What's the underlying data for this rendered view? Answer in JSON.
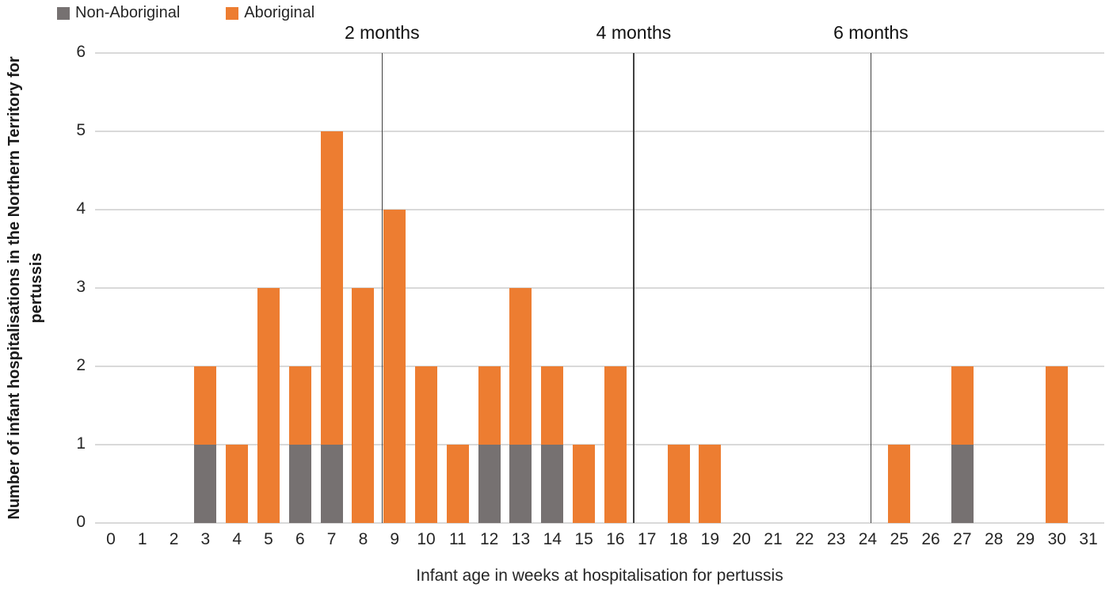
{
  "colors": {
    "aboriginal_orange": "#ED7D31",
    "non_aboriginal_gray": "#767171",
    "gridline": "#d9d9d9",
    "month_line": "#404040",
    "text": "#262626"
  },
  "legend": {
    "items": [
      {
        "label": "Non-Aboriginal",
        "color": "#767171"
      },
      {
        "label": "Aboriginal",
        "color": "#ED7D31"
      }
    ]
  },
  "chart_data": {
    "type": "bar",
    "stacked": true,
    "title": "",
    "xlabel": "Infant age in weeks at hospitalisation for pertussis",
    "ylabel": "Number of infant hospitalisations in the Northern Territory for pertussis",
    "categories": [
      0,
      1,
      2,
      3,
      4,
      5,
      6,
      7,
      8,
      9,
      10,
      11,
      12,
      13,
      14,
      15,
      16,
      17,
      18,
      19,
      20,
      21,
      22,
      23,
      24,
      25,
      26,
      27,
      28,
      29,
      30,
      31
    ],
    "series": [
      {
        "name": "Non-Aboriginal",
        "color": "#767171",
        "values": [
          0,
          0,
          0,
          1,
          0,
          0,
          1,
          1,
          0,
          0,
          0,
          0,
          1,
          1,
          1,
          0,
          0,
          0,
          0,
          0,
          0,
          0,
          0,
          0,
          0,
          0,
          0,
          1,
          0,
          0,
          0,
          0
        ]
      },
      {
        "name": "Aboriginal",
        "color": "#ED7D31",
        "values": [
          0,
          0,
          0,
          1,
          1,
          3,
          1,
          4,
          3,
          4,
          2,
          1,
          1,
          2,
          1,
          1,
          2,
          0,
          1,
          1,
          0,
          0,
          0,
          0,
          0,
          1,
          0,
          1,
          0,
          0,
          2,
          0
        ]
      }
    ],
    "ylim": [
      0,
      6
    ],
    "yticks": [
      0,
      1,
      2,
      3,
      4,
      5,
      6
    ],
    "grid": true,
    "legend_position": "top-left",
    "annotations": [
      {
        "label": "2 months",
        "week": 8.6
      },
      {
        "label": "4 months",
        "week": 16.58
      },
      {
        "label": "6 months",
        "week": 24.1
      }
    ]
  }
}
